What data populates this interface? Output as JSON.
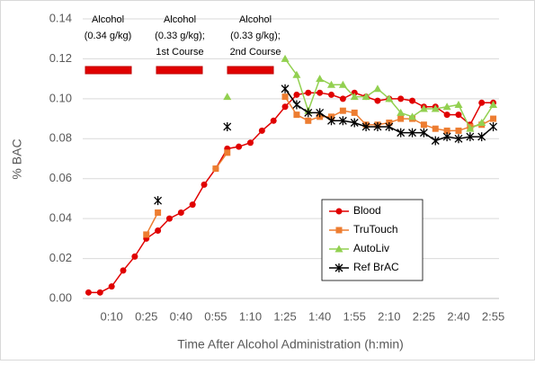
{
  "chart_data": {
    "type": "line",
    "y_axis_label": "% BAC",
    "x_axis_label": "Time After Alcohol Administration (h:min)",
    "annotations": [
      [
        "Alcohol",
        "(0.34 g/kg)"
      ],
      [
        "Alcohol",
        "(0.33 g/kg);",
        "1st Course"
      ],
      [
        "Alcohol",
        "(0.33 g/kg);",
        "2nd Course"
      ]
    ],
    "categories": [
      null,
      null,
      "0:10",
      null,
      null,
      "0:25",
      null,
      null,
      "0:40",
      null,
      null,
      "0:55",
      null,
      null,
      "1:10",
      null,
      null,
      "1:25",
      null,
      null,
      "1:40",
      null,
      null,
      "1:55",
      null,
      null,
      "2:10",
      null,
      null,
      "2:25",
      null,
      null,
      "2:40",
      null,
      null,
      "2:55"
    ],
    "series": [
      {
        "name": "Blood",
        "color": "#e00000",
        "marker": "circle",
        "values": [
          0.003,
          0.003,
          0.006,
          0.014,
          0.021,
          0.03,
          0.034,
          0.04,
          0.043,
          0.047,
          0.057,
          0.065,
          0.075,
          0.076,
          0.078,
          0.084,
          0.089,
          0.096,
          0.102,
          0.103,
          0.103,
          0.102,
          0.1,
          0.103,
          0.101,
          0.099,
          0.1,
          0.1,
          0.099,
          0.096,
          0.096,
          0.092,
          0.092,
          0.087,
          0.098,
          0.098
        ]
      },
      {
        "name": "TruTouch",
        "color": "#ed7d31",
        "marker": "square",
        "values": [
          null,
          null,
          null,
          null,
          null,
          0.032,
          0.043,
          null,
          null,
          null,
          null,
          0.065,
          0.073,
          null,
          null,
          null,
          null,
          0.101,
          0.092,
          0.089,
          0.091,
          0.091,
          0.094,
          0.093,
          0.087,
          0.087,
          0.088,
          0.09,
          0.09,
          0.087,
          0.085,
          0.084,
          0.084,
          0.086,
          0.087,
          0.09
        ]
      },
      {
        "name": "AutoLiv",
        "color": "#92d050",
        "marker": "triangle",
        "values": [
          null,
          null,
          null,
          null,
          null,
          null,
          null,
          null,
          null,
          null,
          null,
          null,
          0.101,
          null,
          null,
          null,
          null,
          0.12,
          0.112,
          0.094,
          0.11,
          0.107,
          0.107,
          0.101,
          0.101,
          0.105,
          0.1,
          0.093,
          0.091,
          0.095,
          0.095,
          0.096,
          0.097,
          0.085,
          0.088,
          0.097
        ]
      },
      {
        "name": "Ref BrAC",
        "color": "#000000",
        "marker": "star",
        "values": [
          null,
          null,
          null,
          null,
          null,
          null,
          0.049,
          null,
          null,
          null,
          null,
          null,
          0.086,
          null,
          null,
          null,
          null,
          0.105,
          0.097,
          0.093,
          0.093,
          0.089,
          0.089,
          0.088,
          0.086,
          0.086,
          0.086,
          0.083,
          0.083,
          0.083,
          0.079,
          0.081,
          0.08,
          0.081,
          0.081,
          0.086
        ]
      }
    ],
    "ylim": [
      0,
      0.14
    ],
    "yticks": [
      {
        "value": 0,
        "label": "0.00"
      },
      {
        "value": 0.02,
        "label": "0.02"
      },
      {
        "value": 0.04,
        "label": "0.04"
      },
      {
        "value": 0.06,
        "label": "0.06"
      },
      {
        "value": 0.08,
        "label": "0.08"
      },
      {
        "value": 0.1,
        "label": "0.10"
      },
      {
        "value": 0.12,
        "label": "0.12"
      },
      {
        "value": 0.14,
        "label": "0.14"
      }
    ],
    "grid": true,
    "legend": "center-right"
  }
}
